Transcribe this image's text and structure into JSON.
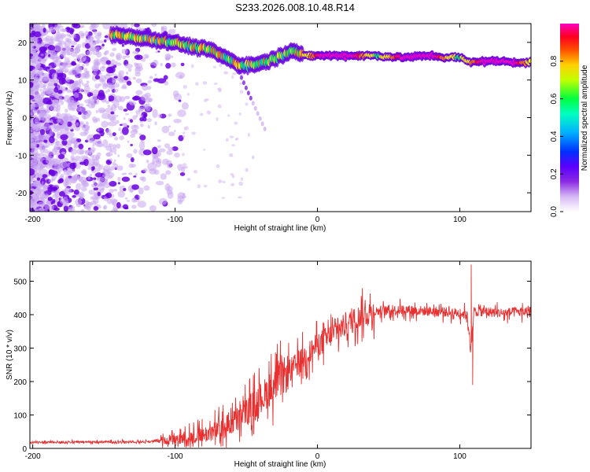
{
  "title": "S233.2026.008.10.48.R14",
  "chart_data": [
    {
      "type": "heatmap",
      "name": "spectrogram",
      "xlabel": "Height of straight line (km)",
      "ylabel": "Frequency (Hz)",
      "xlim": [
        -202,
        150
      ],
      "ylim": [
        -25,
        25
      ],
      "xticks": [
        -200,
        -100,
        0,
        100
      ],
      "yticks": [
        -20,
        -10,
        0,
        10,
        20
      ],
      "colorbar": {
        "label": "Normalized spectral amplitude",
        "range": [
          0,
          1
        ],
        "ticks": [
          "0.0",
          "0.2",
          "0.4",
          "0.6",
          "0.8"
        ],
        "tick_values": [
          0.0,
          0.2,
          0.4,
          0.6,
          0.8
        ]
      },
      "ridge": {
        "description_points_x": [
          -140,
          -120,
          -100,
          -90,
          -75,
          -65,
          -55,
          -45,
          -35,
          -25,
          -18,
          -10,
          0,
          20,
          40,
          60,
          80,
          90,
          100,
          108,
          110,
          130,
          150
        ],
        "description_points_y": [
          22,
          21,
          20,
          19,
          18,
          16,
          14,
          14,
          15,
          16.5,
          18,
          16.5,
          16.5,
          16.5,
          16.5,
          16,
          16.5,
          16,
          16,
          14.5,
          15,
          15,
          14.5
        ]
      },
      "colors": {
        "c0": "#ffffff",
        "c1": "#c9a6f0",
        "c2": "#6a00e0",
        "c3": "#1a1aff",
        "c4": "#00c8ff",
        "c5": "#00ff60",
        "c6": "#ffff00",
        "c7": "#ff8000",
        "c8": "#ff0000",
        "c9": "#ff00c0"
      }
    },
    {
      "type": "line",
      "name": "snr",
      "xlabel": "Height of straight line (km)",
      "ylabel": "SNR (10 * v/v)",
      "xlim": [
        -202,
        150
      ],
      "ylim": [
        0,
        560
      ],
      "xticks": [
        -200,
        -100,
        0,
        100
      ],
      "yticks": [
        0,
        100,
        200,
        300,
        400,
        500
      ],
      "color": "#e83030",
      "envelope_x": [
        -202,
        -120,
        -100,
        -80,
        -70,
        -60,
        -50,
        -40,
        -30,
        -20,
        -10,
        0,
        10,
        20,
        30,
        40,
        60,
        80,
        100,
        105,
        108,
        110,
        115,
        130,
        150
      ],
      "envelope_y": [
        18,
        20,
        25,
        40,
        55,
        75,
        110,
        150,
        190,
        230,
        270,
        310,
        340,
        370,
        395,
        410,
        415,
        410,
        405,
        400,
        300,
        410,
        410,
        405,
        410
      ],
      "spikes": [
        {
          "x": 108,
          "y": 550
        },
        {
          "x": 109,
          "y": 190
        }
      ]
    }
  ]
}
